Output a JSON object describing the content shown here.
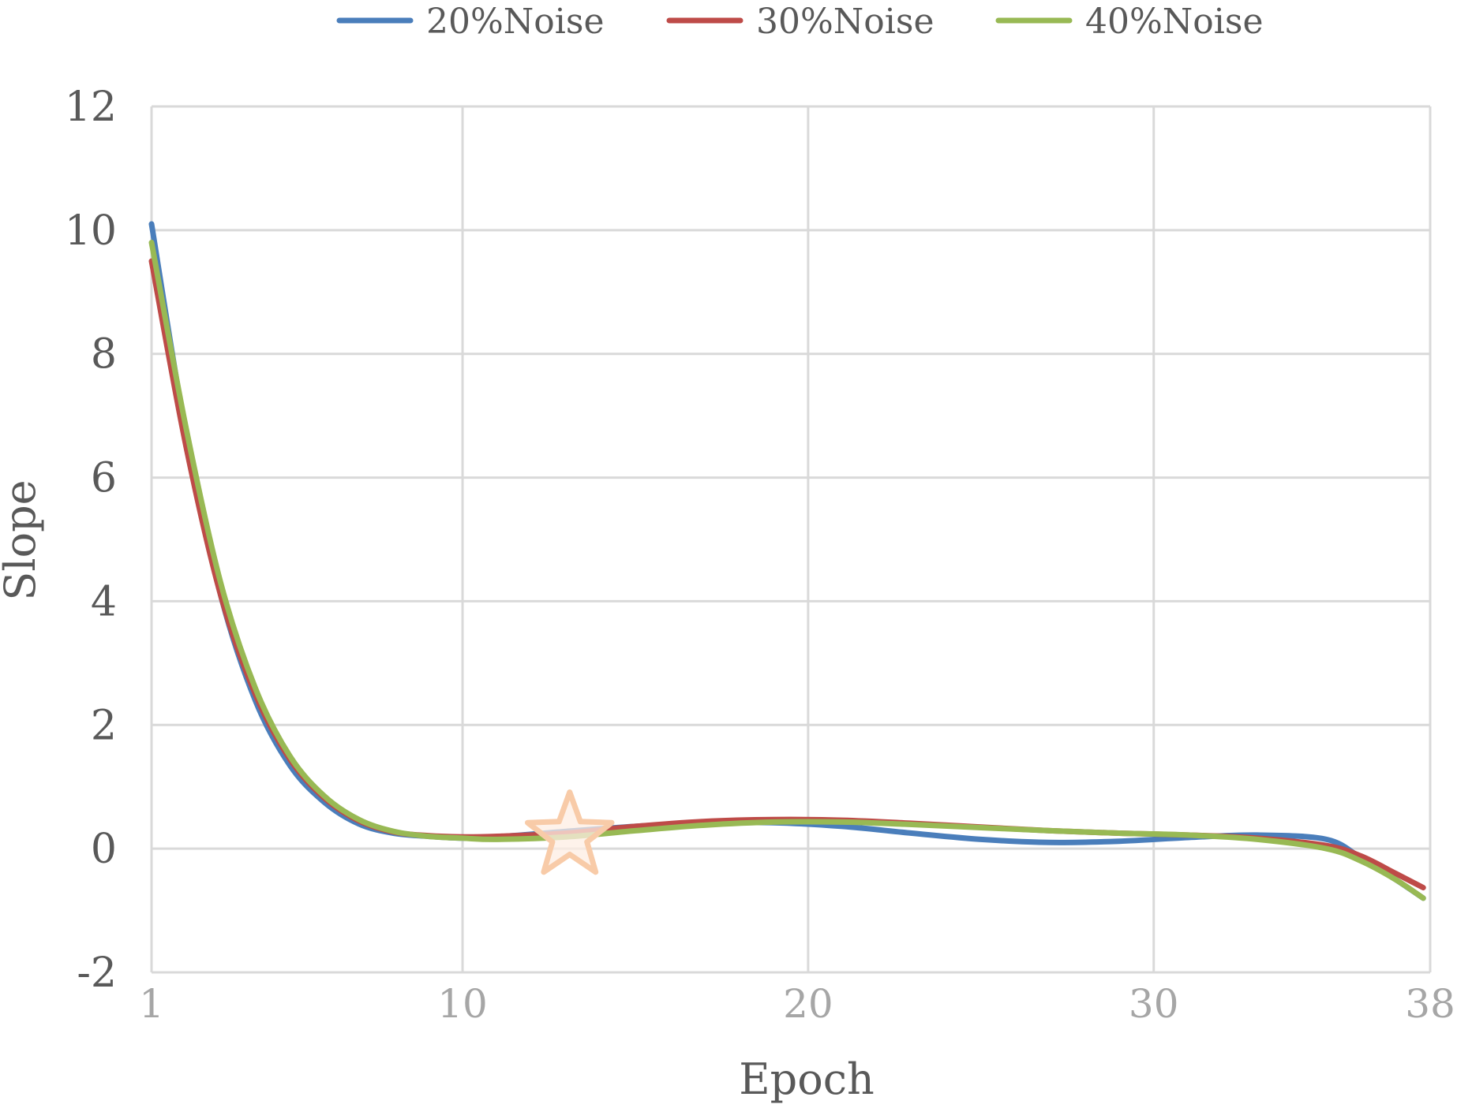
{
  "chart_data": {
    "type": "line",
    "title": "",
    "xlabel": "Epoch",
    "ylabel": "Slope",
    "xlim": [
      1,
      38
    ],
    "ylim": [
      -2,
      12
    ],
    "x_ticks": [
      1,
      10,
      20,
      30,
      38
    ],
    "y_ticks": [
      -2,
      0,
      2,
      4,
      6,
      8,
      10,
      12
    ],
    "grid": true,
    "legend_position": "top",
    "series": [
      {
        "name": "20%Noise",
        "color": "#4a7ebb",
        "points": [
          [
            1,
            10.1
          ],
          [
            2,
            6.7
          ],
          [
            3,
            4.1
          ],
          [
            4,
            2.4
          ],
          [
            5,
            1.35
          ],
          [
            6,
            0.75
          ],
          [
            7,
            0.4
          ],
          [
            8,
            0.25
          ],
          [
            9,
            0.2
          ],
          [
            10,
            0.17
          ],
          [
            11,
            0.19
          ],
          [
            13,
            0.28
          ],
          [
            15,
            0.36
          ],
          [
            17,
            0.41
          ],
          [
            19,
            0.42
          ],
          [
            21,
            0.36
          ],
          [
            23,
            0.25
          ],
          [
            25,
            0.15
          ],
          [
            27,
            0.1
          ],
          [
            29,
            0.12
          ],
          [
            31,
            0.18
          ],
          [
            33,
            0.22
          ],
          [
            35,
            0.15
          ],
          [
            36,
            -0.15
          ],
          [
            37,
            -0.5
          ],
          [
            37.8,
            -0.8
          ]
        ]
      },
      {
        "name": "30%Noise",
        "color": "#be4b48",
        "points": [
          [
            1,
            9.5
          ],
          [
            2,
            6.5
          ],
          [
            3,
            4.1
          ],
          [
            4,
            2.5
          ],
          [
            5,
            1.45
          ],
          [
            6,
            0.82
          ],
          [
            7,
            0.45
          ],
          [
            8,
            0.27
          ],
          [
            9,
            0.21
          ],
          [
            10,
            0.19
          ],
          [
            11,
            0.2
          ],
          [
            13,
            0.25
          ],
          [
            15,
            0.36
          ],
          [
            17,
            0.44
          ],
          [
            19,
            0.47
          ],
          [
            21,
            0.46
          ],
          [
            23,
            0.41
          ],
          [
            25,
            0.35
          ],
          [
            27,
            0.29
          ],
          [
            29,
            0.25
          ],
          [
            31,
            0.22
          ],
          [
            33,
            0.17
          ],
          [
            35,
            0.05
          ],
          [
            36,
            -0.12
          ],
          [
            37,
            -0.4
          ],
          [
            37.8,
            -0.63
          ]
        ]
      },
      {
        "name": "40%Noise",
        "color": "#98b954",
        "points": [
          [
            1,
            9.8
          ],
          [
            2,
            6.8
          ],
          [
            3,
            4.3
          ],
          [
            4,
            2.6
          ],
          [
            5,
            1.5
          ],
          [
            6,
            0.85
          ],
          [
            7,
            0.47
          ],
          [
            8,
            0.28
          ],
          [
            9,
            0.2
          ],
          [
            10,
            0.17
          ],
          [
            11,
            0.15
          ],
          [
            13,
            0.19
          ],
          [
            15,
            0.29
          ],
          [
            17,
            0.38
          ],
          [
            19,
            0.43
          ],
          [
            21,
            0.43
          ],
          [
            23,
            0.39
          ],
          [
            25,
            0.34
          ],
          [
            27,
            0.29
          ],
          [
            29,
            0.25
          ],
          [
            31,
            0.22
          ],
          [
            33,
            0.15
          ],
          [
            35,
            0.0
          ],
          [
            36,
            -0.2
          ],
          [
            37,
            -0.5
          ],
          [
            37.8,
            -0.8
          ]
        ]
      }
    ],
    "annotations": [
      {
        "type": "star",
        "x": 13.1,
        "y": 0.2,
        "color": "#f8cba8"
      }
    ]
  }
}
